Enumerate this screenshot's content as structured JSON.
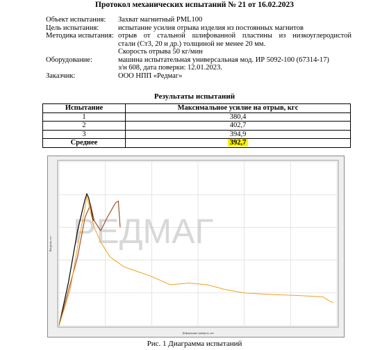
{
  "title": "Протокол механических испытаний № 21 от 16.02.2023",
  "info": [
    {
      "label": "Объект испытания:",
      "lines": [
        "Захват магнитный PML100"
      ]
    },
    {
      "label": "Цель испытания:",
      "lines": [
        "испытание усилия отрыва изделия из постоянных магнитов"
      ]
    },
    {
      "label": "Методика испытания:",
      "lines": [
        "отрыв от стальной шлифованной пластины из низкоуглеродистой",
        "стали (Ст3, 20 и др.) толщиной не менее 20 мм.",
        "Скорость отрыва 50 кг/мин"
      ]
    },
    {
      "label": "Оборудование:",
      "lines": [
        "машина испытательная универсальная мод. ИР 5092-100 (67314-17)",
        "з/н 608, дата поверки: 12.01.2023."
      ]
    },
    {
      "label": "Заказчик:",
      "lines": [
        "ООО НПП «Редмаг»"
      ]
    }
  ],
  "results": {
    "title": "Результаты испытаний",
    "headers": [
      "Испытание",
      "Максимальное усилие на отрыв, кгс"
    ],
    "rows": [
      [
        "1",
        "380,4"
      ],
      [
        "2",
        "402,7"
      ],
      [
        "3",
        "394,9"
      ]
    ],
    "average_label": "Среднее",
    "average_value": "392,7",
    "highlight_color": "#fff200"
  },
  "chart_data": {
    "type": "line",
    "xlabel": "Деформация траверсы, мм",
    "ylabel": "Нагрузка, кгс",
    "xlim": [
      0,
      3.0
    ],
    "ylim": [
      0,
      500
    ],
    "watermark": "РЕДМАГ",
    "series": [
      {
        "color": "#000000",
        "x": [
          0,
          0.1,
          0.2,
          0.28,
          0.3,
          0.32,
          0.35,
          0.36,
          0.37
        ],
        "y": [
          0,
          130,
          290,
          385,
          402,
          390,
          350,
          330,
          320
        ]
      },
      {
        "color": "#a0522d",
        "x": [
          0,
          0.08,
          0.2,
          0.28,
          0.34,
          0.38,
          0.45,
          0.52,
          0.58,
          0.61,
          0.64,
          0.66
        ],
        "y": [
          0,
          85,
          210,
          330,
          370,
          320,
          290,
          330,
          360,
          375,
          380,
          300
        ]
      },
      {
        "color": "#f0a020",
        "x": [
          0,
          0.12,
          0.2,
          0.28,
          0.3,
          0.33,
          0.38,
          0.45,
          0.55,
          0.7,
          0.85,
          1.0,
          1.2,
          1.4,
          1.6,
          1.8,
          2.0,
          2.3,
          2.6,
          2.85,
          2.92,
          2.96
        ],
        "y": [
          0,
          110,
          240,
          360,
          395,
          360,
          300,
          255,
          210,
          180,
          165,
          150,
          125,
          130,
          125,
          110,
          100,
          95,
          92,
          88,
          75,
          70
        ]
      }
    ]
  },
  "caption": "Рис. 1 Диаграмма испытаний"
}
